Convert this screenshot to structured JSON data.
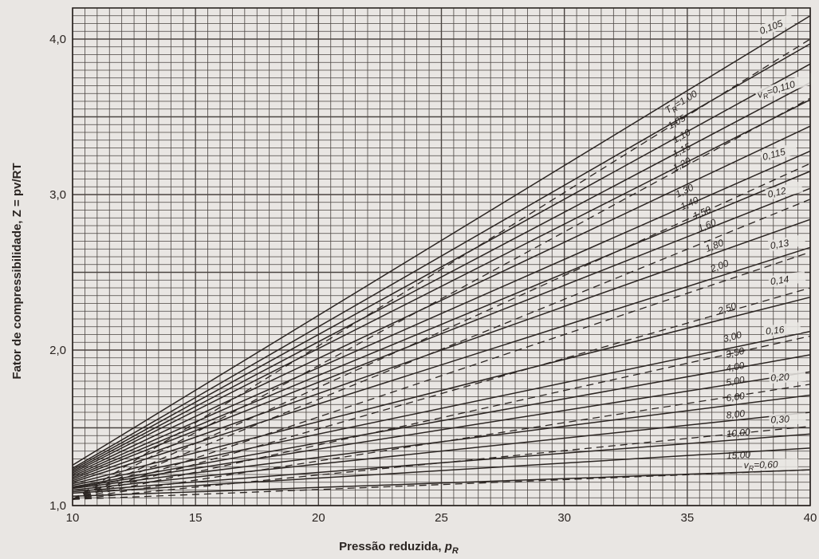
{
  "chart_data": {
    "type": "line",
    "xlabel": "Pressão reduzida, ",
    "xlabel_sub": "p",
    "xlabel_subscript": "R",
    "ylabel": "Fator de compressibilidade, Z = pv/RT",
    "xlim": [
      10,
      40
    ],
    "ylim": [
      1.0,
      4.2
    ],
    "x_ticks": [
      10,
      15,
      20,
      25,
      30,
      35,
      40
    ],
    "x_tick_labels": [
      "10",
      "15",
      "20",
      "25",
      "30",
      "35",
      "40"
    ],
    "y_ticks": [
      1.0,
      2.0,
      3.0,
      4.0
    ],
    "y_tick_labels": [
      "1,0",
      "2,0",
      "3,0",
      "4,0"
    ],
    "grid": true,
    "tr_series": [
      {
        "name": "T_R=1,00",
        "x": [
          10,
          40
        ],
        "y": [
          1.26,
          4.15
        ]
      },
      {
        "name": "1,05",
        "x": [
          10,
          40
        ],
        "y": [
          1.24,
          3.97
        ]
      },
      {
        "name": "1,10",
        "x": [
          10,
          40
        ],
        "y": [
          1.23,
          3.84
        ]
      },
      {
        "name": "1,15",
        "x": [
          10,
          40
        ],
        "y": [
          1.22,
          3.72
        ]
      },
      {
        "name": "1,20",
        "x": [
          10,
          40
        ],
        "y": [
          1.21,
          3.61
        ]
      },
      {
        "name": "1,30",
        "x": [
          10,
          40
        ],
        "y": [
          1.2,
          3.44
        ]
      },
      {
        "name": "1,40",
        "x": [
          10,
          40
        ],
        "y": [
          1.19,
          3.28
        ]
      },
      {
        "name": "1,50",
        "x": [
          10,
          40
        ],
        "y": [
          1.18,
          3.15
        ]
      },
      {
        "name": "1,60",
        "x": [
          10,
          40
        ],
        "y": [
          1.17,
          3.04
        ]
      },
      {
        "name": "1,80",
        "x": [
          10,
          40
        ],
        "y": [
          1.16,
          2.84
        ]
      },
      {
        "name": "2,00",
        "x": [
          10,
          40
        ],
        "y": [
          1.15,
          2.66
        ]
      },
      {
        "name": "2,50",
        "x": [
          10,
          40
        ],
        "y": [
          1.14,
          2.34
        ]
      },
      {
        "name": "3,00",
        "x": [
          10,
          40
        ],
        "y": [
          1.13,
          2.12
        ]
      },
      {
        "name": "3,50",
        "x": [
          10,
          40
        ],
        "y": [
          1.12,
          1.97
        ]
      },
      {
        "name": "4,00",
        "x": [
          10,
          40
        ],
        "y": [
          1.115,
          1.86
        ]
      },
      {
        "name": "5,00",
        "x": [
          10,
          40
        ],
        "y": [
          1.11,
          1.71
        ]
      },
      {
        "name": "6,00",
        "x": [
          10,
          40
        ],
        "y": [
          1.1,
          1.6
        ]
      },
      {
        "name": "8,00",
        "x": [
          10,
          40
        ],
        "y": [
          1.09,
          1.46
        ]
      },
      {
        "name": "10,00",
        "x": [
          10,
          40
        ],
        "y": [
          1.08,
          1.37
        ]
      },
      {
        "name": "15,00",
        "x": [
          10,
          40
        ],
        "y": [
          1.06,
          1.23
        ]
      }
    ],
    "vr_series": [
      {
        "name": "0,105",
        "x": [
          10,
          40
        ],
        "y": [
          1.04,
          4.0
        ]
      },
      {
        "name": "v_R=0,110",
        "x": [
          10,
          40
        ],
        "y": [
          1.04,
          3.62
        ]
      },
      {
        "name": "0,115",
        "x": [
          10,
          40
        ],
        "y": [
          1.04,
          3.2
        ]
      },
      {
        "name": "0,12",
        "x": [
          10,
          40
        ],
        "y": [
          1.04,
          2.97
        ]
      },
      {
        "name": "0,13",
        "x": [
          10,
          40
        ],
        "y": [
          1.04,
          2.63
        ]
      },
      {
        "name": "0,14",
        "x": [
          10,
          40
        ],
        "y": [
          1.04,
          2.4
        ]
      },
      {
        "name": "0,16",
        "x": [
          10,
          40
        ],
        "y": [
          1.04,
          2.09
        ]
      },
      {
        "name": "0,20",
        "x": [
          10,
          40
        ],
        "y": [
          1.04,
          1.78
        ]
      },
      {
        "name": "0,30",
        "x": [
          10,
          40
        ],
        "y": [
          1.04,
          1.51
        ]
      },
      {
        "name": "v_R=0,60",
        "x": [
          10,
          40
        ],
        "y": [
          1.04,
          1.23
        ]
      }
    ],
    "tr_labels": {
      "prefix": "T",
      "prefix_sub": "R",
      "first_value": "=1,00",
      "values": [
        "1,05",
        "1,10",
        "1,15",
        "1,20",
        "1,30",
        "1,40",
        "1,50",
        "1,60",
        "1,80",
        "2,00",
        "2,50",
        "3,00",
        "3,50",
        "4,00",
        "5,00",
        "6,00",
        "8,00",
        "10,00",
        "15,00"
      ]
    },
    "vr_labels": {
      "v_prefix": "v",
      "v_prefix_sub": "R",
      "values": [
        "0,105",
        "=0,110",
        "0,115",
        "0,12",
        "0,13",
        "0,14",
        "0,16",
        "0,20",
        "0,30",
        "=0,60"
      ]
    },
    "colors": {
      "background": "#e9e6e3",
      "ink": "#2b2522",
      "grid": "#4a4441"
    }
  }
}
